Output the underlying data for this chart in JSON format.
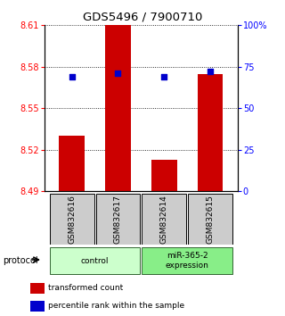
{
  "title": "GDS5496 / 7900710",
  "samples": [
    "GSM832616",
    "GSM832617",
    "GSM832614",
    "GSM832615"
  ],
  "bar_values": [
    8.53,
    8.61,
    8.513,
    8.575
  ],
  "percentile_values": [
    69,
    71,
    69,
    72
  ],
  "bar_bottom": 8.49,
  "ylim_left": [
    8.49,
    8.61
  ],
  "ylim_right": [
    0,
    100
  ],
  "yticks_left": [
    8.49,
    8.52,
    8.55,
    8.58,
    8.61
  ],
  "yticks_right": [
    0,
    25,
    50,
    75,
    100
  ],
  "ytick_labels_right": [
    "0",
    "25",
    "50",
    "75",
    "100%"
  ],
  "bar_color": "#CC0000",
  "dot_color": "#0000CC",
  "groups": [
    {
      "label": "control",
      "samples": [
        0,
        1
      ],
      "color": "#ccffcc"
    },
    {
      "label": "miR-365-2\nexpression",
      "samples": [
        2,
        3
      ],
      "color": "#88ee88"
    }
  ],
  "legend_bar_label": "transformed count",
  "legend_dot_label": "percentile rank within the sample",
  "protocol_label": "protocol",
  "sample_box_color": "#cccccc",
  "bar_width": 0.55
}
